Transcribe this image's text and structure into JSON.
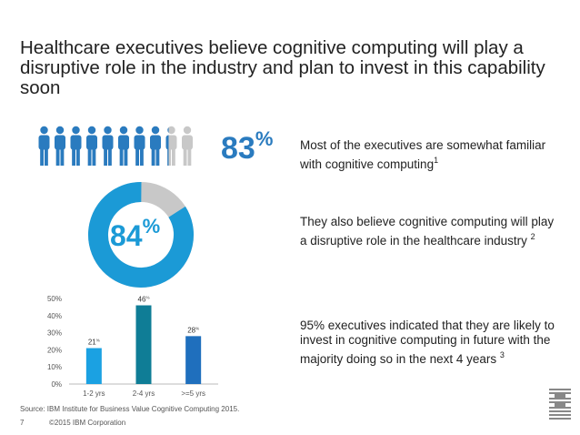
{
  "title_line1": "Healthcare executives believe cognitive computing will play a",
  "title_line2": "disruptive role in the industry and plan to invest in this capability soon",
  "stat1": {
    "value": "83",
    "unit": "%",
    "people_total": 10,
    "people_highlighted": 8.3
  },
  "statement1": {
    "text": "Most of the executives are somewhat familiar with cognitive computing",
    "note": "1"
  },
  "stat2": {
    "value": "84",
    "unit": "%",
    "fraction": 0.84
  },
  "statement2": {
    "text": "They also believe cognitive computing will play a disruptive role in the healthcare industry",
    "note": "2"
  },
  "statement3": {
    "text": "95% executives indicated that they are likely to invest in cognitive computing in future with the majority doing so in the next 4 years",
    "note": "3"
  },
  "chart_data": {
    "type": "bar",
    "categories": [
      "1-2 yrs",
      "2-4 yrs",
      ">=5 yrs"
    ],
    "values": [
      21,
      46,
      28
    ],
    "value_labels": [
      "21",
      "46",
      "28"
    ],
    "label_unit": "%",
    "yticks": [
      "0%",
      "10%",
      "20%",
      "30%",
      "40%",
      "50%"
    ],
    "ylim": [
      0,
      50
    ],
    "colors": [
      "#1ba1e2",
      "#0f7d96",
      "#1f6fbd"
    ],
    "grid": false
  },
  "source": "Source: IBM Institute for Business Value Cognitive Computing 2015.",
  "page_number": "7",
  "copyright": "©2015 IBM Corporation",
  "logo_text": "IBM",
  "colors": {
    "accent_blue": "#2a7bbf",
    "donut_blue": "#1b9ad6",
    "gray": "#c8c8c8"
  }
}
